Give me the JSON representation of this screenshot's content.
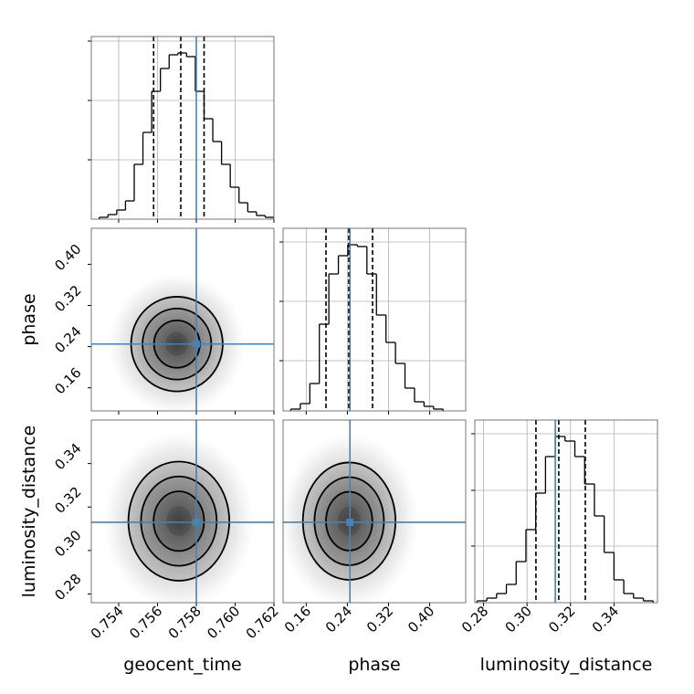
{
  "chart_data": {
    "type": "corner",
    "grid": true,
    "truth_color": "#4682b4",
    "hist_color": "#000000",
    "parameters": [
      {
        "name": "geocent_time",
        "lim": [
          0.75259,
          0.762
        ],
        "truth": 0.758,
        "ticks": [
          0.754,
          0.756,
          0.758,
          {
            "value": 0.76,
            "label": "0.760"
          },
          0.762
        ],
        "quantiles": [
          0.7558,
          0.7572,
          0.7584
        ],
        "hist": {
          "bins": [
            0.753,
            0.75345,
            0.7539,
            0.75435,
            0.7548,
            0.75525,
            0.7557,
            0.75615,
            0.7566,
            0.75705,
            0.7575,
            0.75795,
            0.7584,
            0.75885,
            0.7593,
            0.75975,
            0.7602,
            0.76065,
            0.7611,
            0.76155,
            0.762
          ],
          "counts": [
            2,
            5,
            10,
            20,
            60,
            95,
            140,
            165,
            180,
            182,
            178,
            140,
            110,
            85,
            60,
            35,
            18,
            8,
            4,
            2
          ],
          "ylim": [
            0,
            200
          ],
          "yticks": [
            65,
            130,
            195
          ]
        }
      },
      {
        "name": "phase",
        "lim": [
          0.115,
          0.47
        ],
        "truth": 0.245,
        "ticks": [
          0.16,
          0.24,
          0.32,
          {
            "value": 0.4,
            "label": "0.40"
          }
        ],
        "quantiles": [
          0.1984,
          0.2428,
          0.2889
        ],
        "hist": {
          "bins": [
            0.13,
            0.1485,
            0.167,
            0.1855,
            0.204,
            0.2225,
            0.241,
            0.2595,
            0.278,
            0.2965,
            0.315,
            0.3335,
            0.352,
            0.3705,
            0.389,
            0.4075,
            0.426
          ],
          "counts": [
            2,
            8,
            30,
            95,
            150,
            170,
            182,
            180,
            150,
            105,
            75,
            52,
            25,
            10,
            5,
            2
          ],
          "ylim": [
            0,
            200
          ],
          "yticks": [
            55,
            120,
            185
          ]
        }
      },
      {
        "name": "luminosity_distance",
        "lim": [
          0.276,
          0.36
        ],
        "truth": 0.313,
        "ticks": [
          0.28,
          {
            "value": 0.3,
            "label": "0.30"
          },
          0.32,
          0.34
        ],
        "quantiles": [
          0.3041,
          0.3146,
          0.3268
        ],
        "hist": {
          "bins": [
            0.277,
            0.2815,
            0.286,
            0.2905,
            0.295,
            0.2995,
            0.304,
            0.3085,
            0.313,
            0.3175,
            0.322,
            0.3265,
            0.331,
            0.3355,
            0.34,
            0.3445,
            0.349,
            0.3535,
            0.358
          ],
          "counts": [
            2,
            5,
            10,
            20,
            45,
            80,
            120,
            160,
            182,
            177,
            160,
            130,
            95,
            55,
            25,
            10,
            5,
            2
          ],
          "ylim": [
            0,
            200
          ],
          "yticks": [
            62,
            123,
            185
          ]
        }
      }
    ],
    "pairs": [
      {
        "x": 0,
        "y": 1,
        "mean": [
          0.757,
          0.245
        ],
        "sd": [
          0.00118,
          0.046
        ],
        "levels": [
          0.5,
          1,
          1.5,
          2
        ]
      },
      {
        "x": 0,
        "y": 2,
        "mean": [
          0.7571,
          0.3135
        ],
        "sd": [
          0.0013,
          0.0137
        ],
        "levels": [
          0.5,
          1,
          1.5,
          2
        ]
      },
      {
        "x": 1,
        "y": 2,
        "mean": [
          0.2435,
          0.3135
        ],
        "sd": [
          0.045,
          0.0135
        ],
        "levels": [
          0.5,
          1,
          1.5,
          2
        ]
      }
    ]
  }
}
